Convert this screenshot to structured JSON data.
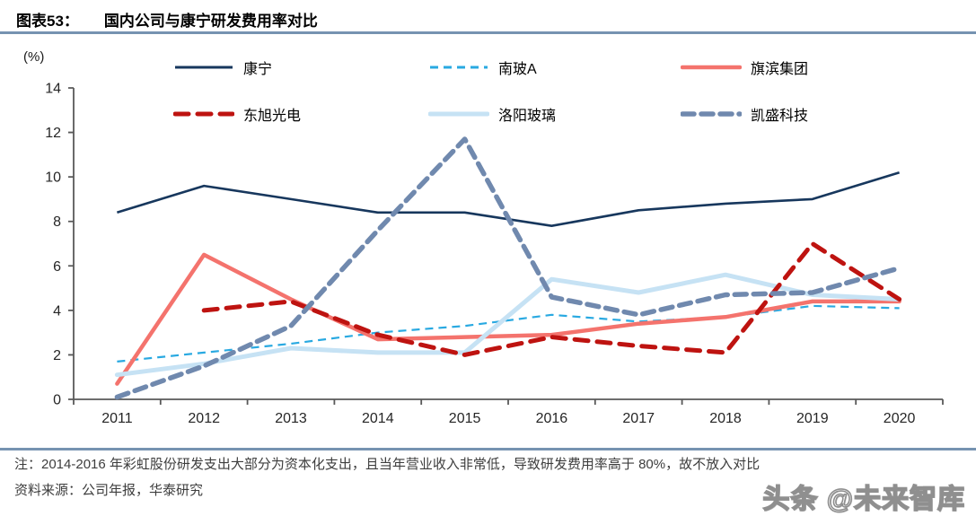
{
  "header": {
    "tag": "图表53：",
    "title": "国内公司与康宁研发费用率对比"
  },
  "chart_data": {
    "type": "line",
    "title": "国内公司与康宁研发费用率对比",
    "xlabel": "",
    "ylabel": "(%)",
    "ylim": [
      0,
      14
    ],
    "ytick_step": 2,
    "ytick_labels": [
      "0",
      "2",
      "4",
      "6",
      "8",
      "10",
      "12",
      "14"
    ],
    "grid": false,
    "legend_position": "top",
    "categories": [
      "2011",
      "2012",
      "2013",
      "2014",
      "2015",
      "2016",
      "2017",
      "2018",
      "2019",
      "2020"
    ],
    "series": [
      {
        "name": "康宁",
        "color": "#17375D",
        "line_style": "solid",
        "line_width": 2.6,
        "dash_pattern": "",
        "values": [
          8.4,
          9.6,
          9.0,
          8.4,
          8.4,
          7.8,
          8.5,
          8.8,
          9.0,
          10.2
        ]
      },
      {
        "name": "南玻A",
        "color": "#29A9E1",
        "line_style": "dashed",
        "line_width": 2.2,
        "dash_pattern": "9 6",
        "values": [
          1.7,
          2.1,
          2.5,
          3.0,
          3.3,
          3.8,
          3.5,
          3.7,
          4.2,
          4.1
        ]
      },
      {
        "name": "旗滨集团",
        "color": "#F4736D",
        "line_style": "solid",
        "line_width": 4.5,
        "dash_pattern": "",
        "values": [
          0.7,
          6.5,
          4.5,
          2.7,
          2.8,
          2.9,
          3.4,
          3.7,
          4.4,
          4.4
        ]
      },
      {
        "name": "东旭光电",
        "color": "#BE1310",
        "line_style": "dashed",
        "line_width": 5,
        "dash_pattern": "15 10",
        "values": [
          null,
          4.0,
          4.4,
          2.9,
          2.0,
          2.8,
          2.4,
          2.1,
          7.0,
          4.5
        ]
      },
      {
        "name": "洛阳玻璃",
        "color": "#C6E2F4",
        "line_style": "solid",
        "line_width": 5,
        "dash_pattern": "",
        "values": [
          1.1,
          1.6,
          2.3,
          2.1,
          2.1,
          5.4,
          4.8,
          5.6,
          4.7,
          4.5
        ]
      },
      {
        "name": "凯盛科技",
        "color": "#7089AE",
        "line_style": "dashed",
        "line_width": 5.5,
        "dash_pattern": "13 8",
        "values": [
          0.1,
          1.5,
          3.3,
          7.6,
          11.7,
          4.6,
          3.8,
          4.7,
          4.8,
          5.9
        ]
      }
    ]
  },
  "footer": {
    "note": "注：2014-2016 年彩虹股份研发支出大部分为资本化支出，且当年营业收入非常低，导致研发费用率高于 80%，故不放入对比",
    "source": "资料来源：公司年报，华泰研究"
  },
  "watermark": {
    "text": "头条 @未来智库"
  },
  "colors": {
    "divider": "#7693B1",
    "axis": "#595959",
    "tick_text": "#262626"
  }
}
